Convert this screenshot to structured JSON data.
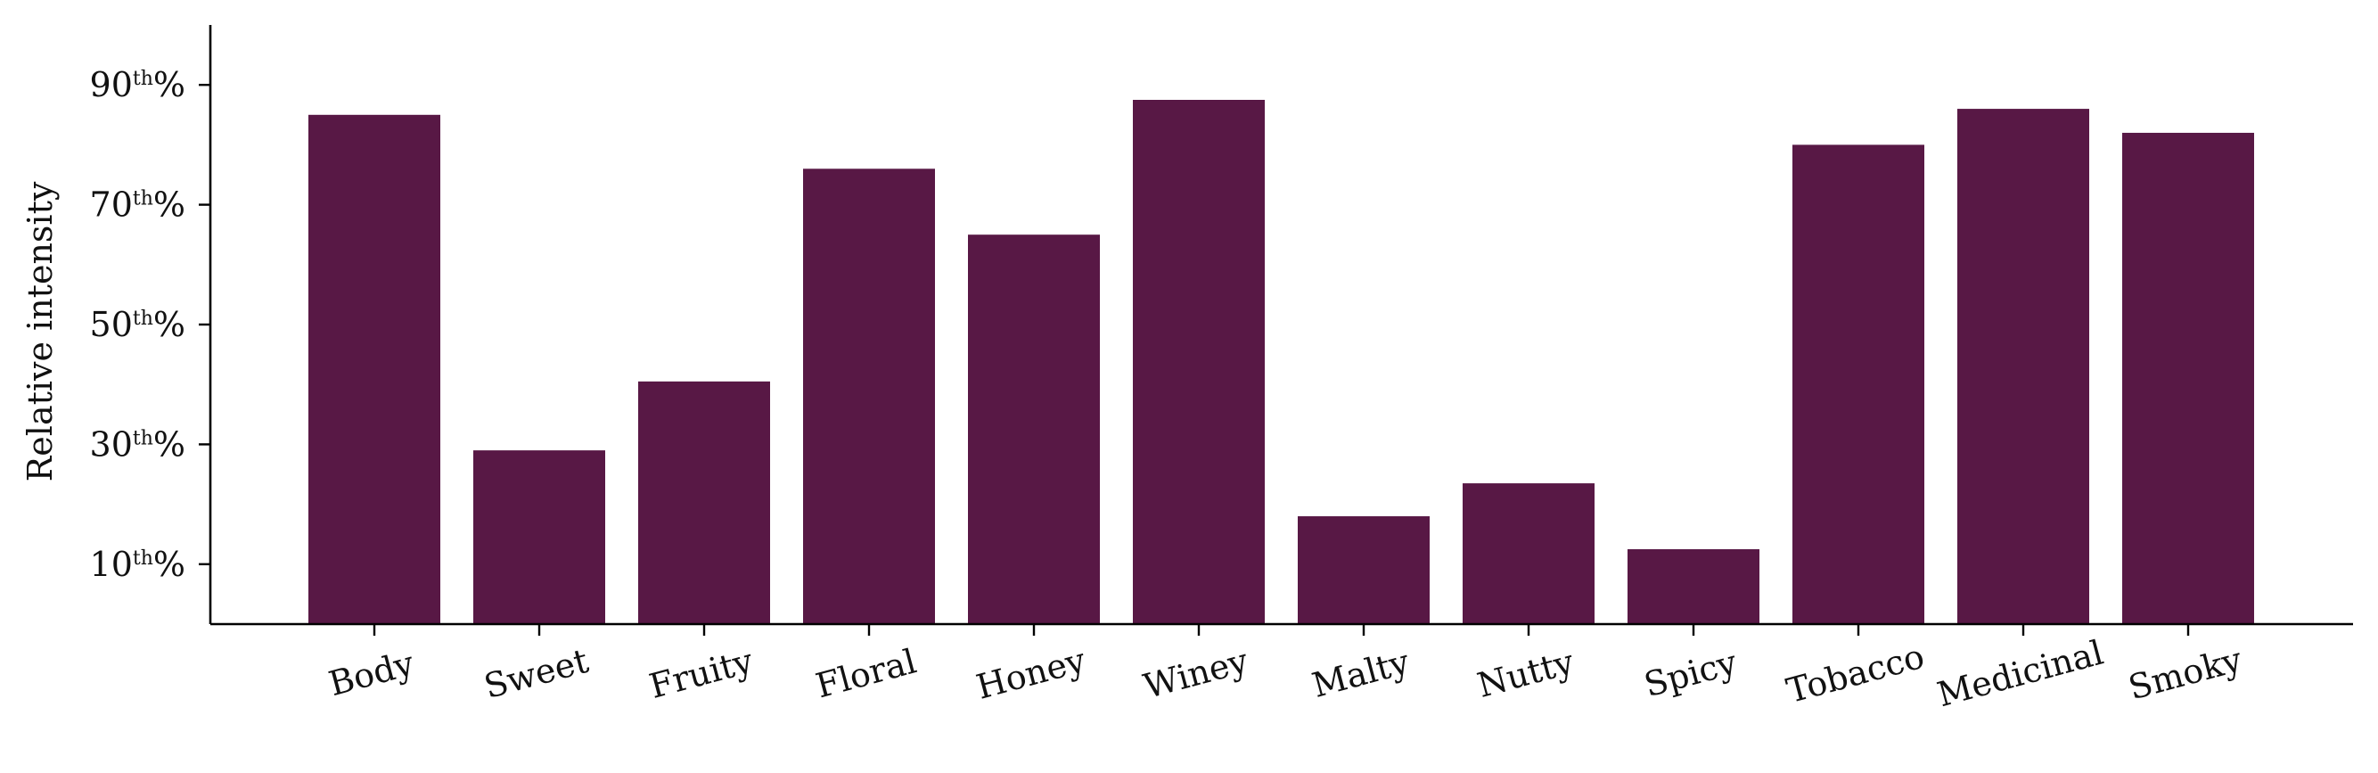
{
  "chart_data": {
    "type": "bar",
    "title": "",
    "xlabel": "",
    "ylabel": "Relative intensity",
    "categories": [
      "Body",
      "Sweet",
      "Fruity",
      "Floral",
      "Honey",
      "Winey",
      "Malty",
      "Nutty",
      "Spicy",
      "Tobacco",
      "Medicinal",
      "Smoky"
    ],
    "values": [
      85.0,
      29.0,
      40.5,
      76.0,
      65.0,
      87.5,
      18.0,
      23.5,
      12.5,
      80.0,
      86.0,
      82.0
    ],
    "ylim": [
      0,
      100
    ],
    "yticks": [
      10,
      30,
      50,
      70,
      90
    ],
    "ytick_labels": [
      {
        "num": "10",
        "sup": "th",
        "pct": "%"
      },
      {
        "num": "30",
        "sup": "th",
        "pct": "%"
      },
      {
        "num": "50",
        "sup": "th",
        "pct": "%"
      },
      {
        "num": "70",
        "sup": "th",
        "pct": "%"
      },
      {
        "num": "90",
        "sup": "th",
        "pct": "%"
      }
    ],
    "bar_color": "#581845",
    "grid": false,
    "legend": "none"
  }
}
